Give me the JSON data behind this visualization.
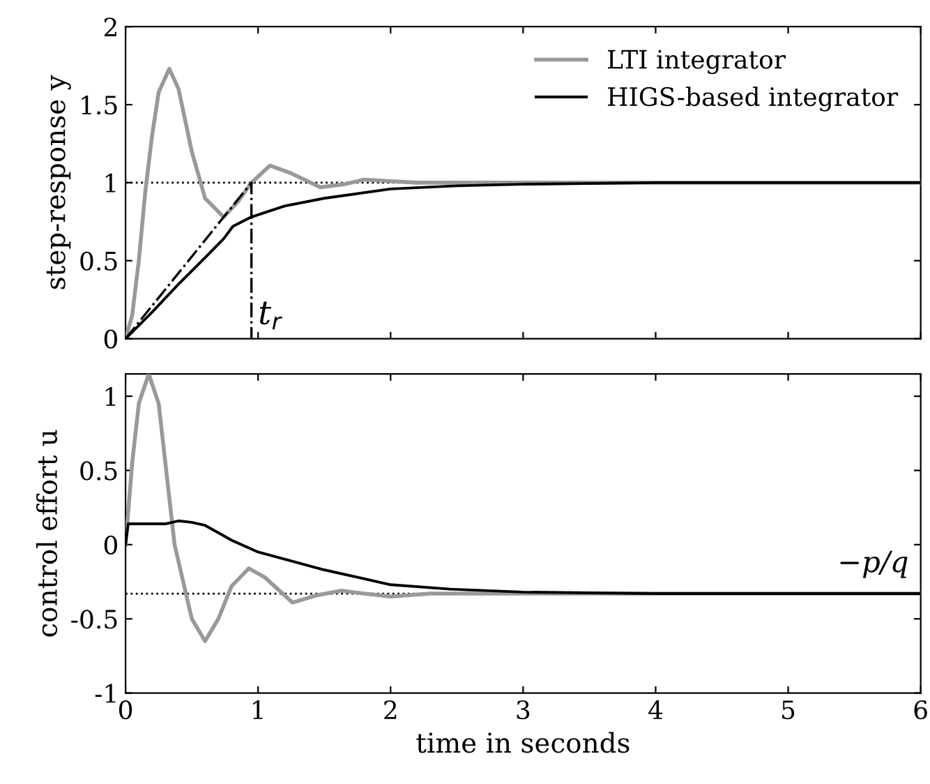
{
  "chart_data": [
    {
      "type": "line",
      "ylabel": "step-response y",
      "xlim": [
        0,
        6
      ],
      "xticks": [
        0,
        1,
        2,
        3,
        4,
        5,
        6
      ],
      "ylim": [
        0,
        2
      ],
      "yticks": [
        0,
        0.5,
        1,
        1.5,
        2
      ],
      "tick_labels": "y",
      "grid": false,
      "legend": "top right",
      "marker": "none",
      "series": [
        {
          "name": "LTI integrator",
          "color": "#999999",
          "line_style": "solid",
          "x": [
            0,
            0.05,
            0.1,
            0.15,
            0.2,
            0.25,
            0.33,
            0.4,
            0.5,
            0.6,
            0.74,
            0.85,
            0.95,
            1.09,
            1.25,
            1.47,
            1.65,
            1.8,
            2.0,
            2.2,
            2.5,
            3,
            4,
            5,
            6
          ],
          "values": [
            0,
            0.15,
            0.5,
            0.95,
            1.3,
            1.58,
            1.73,
            1.6,
            1.2,
            0.9,
            0.78,
            0.88,
            1.0,
            1.11,
            1.06,
            0.97,
            0.99,
            1.02,
            1.01,
            1.0,
            1.0,
            1.0,
            1.0,
            1.0,
            1.0
          ]
        },
        {
          "name": "HIGS-based integrator",
          "color": "#000000",
          "line_style": "solid",
          "x": [
            0,
            0.2,
            0.4,
            0.6,
            0.74,
            0.81,
            0.95,
            1.2,
            1.5,
            2.0,
            2.5,
            3,
            4,
            5,
            6
          ],
          "values": [
            0,
            0.17,
            0.35,
            0.52,
            0.64,
            0.72,
            0.78,
            0.85,
            0.9,
            0.96,
            0.98,
            0.99,
            1.0,
            1.0,
            1.0
          ]
        },
        {
          "color": "#000000",
          "line_style": "dashdot",
          "x": [
            0,
            0.95,
            0.95
          ],
          "values": [
            0,
            1,
            0
          ]
        }
      ],
      "ref_lines": [
        {
          "axis": "y",
          "value": 1,
          "color": "#000000",
          "line_style": "dotted"
        }
      ],
      "annotations": [
        {
          "text": "t$_{r}$",
          "x": 1.0,
          "y": 0.15
        }
      ]
    },
    {
      "type": "line",
      "ylabel": "control effort u",
      "xlabel": "time in seconds",
      "xlim": [
        0,
        6
      ],
      "xticks": [
        0,
        1,
        2,
        3,
        4,
        5,
        6
      ],
      "ylim": [
        -1,
        1.15
      ],
      "yticks": [
        -1,
        -0.5,
        0,
        0.5,
        1
      ],
      "grid": false,
      "marker": "none",
      "series": [
        {
          "color": "#999999",
          "line_style": "solid",
          "x": [
            0,
            0.05,
            0.1,
            0.175,
            0.25,
            0.37,
            0.5,
            0.6,
            0.7,
            0.8,
            0.93,
            1.05,
            1.26,
            1.45,
            1.63,
            1.8,
            2.0,
            2.3,
            3,
            4,
            5,
            6
          ],
          "values": [
            0,
            0.55,
            0.95,
            1.15,
            0.95,
            0.0,
            -0.5,
            -0.65,
            -0.5,
            -0.28,
            -0.16,
            -0.22,
            -0.39,
            -0.34,
            -0.31,
            -0.33,
            -0.35,
            -0.33,
            -0.33,
            -0.33,
            -0.33,
            -0.33
          ]
        },
        {
          "color": "#000000",
          "line_style": "solid",
          "x": [
            0,
            0.02,
            0.3,
            0.4,
            0.5,
            0.6,
            0.7,
            0.8,
            1.0,
            1.5,
            2.0,
            2.45,
            3,
            4,
            5,
            6
          ],
          "values": [
            0,
            0.14,
            0.14,
            0.16,
            0.15,
            0.13,
            0.08,
            0.03,
            -0.05,
            -0.17,
            -0.27,
            -0.3,
            -0.32,
            -0.33,
            -0.33,
            -0.33
          ]
        }
      ],
      "ref_lines": [
        {
          "axis": "y",
          "value": -0.33,
          "color": "#000000",
          "line_style": "dotted",
          "label": "−p/q"
        }
      ]
    }
  ]
}
